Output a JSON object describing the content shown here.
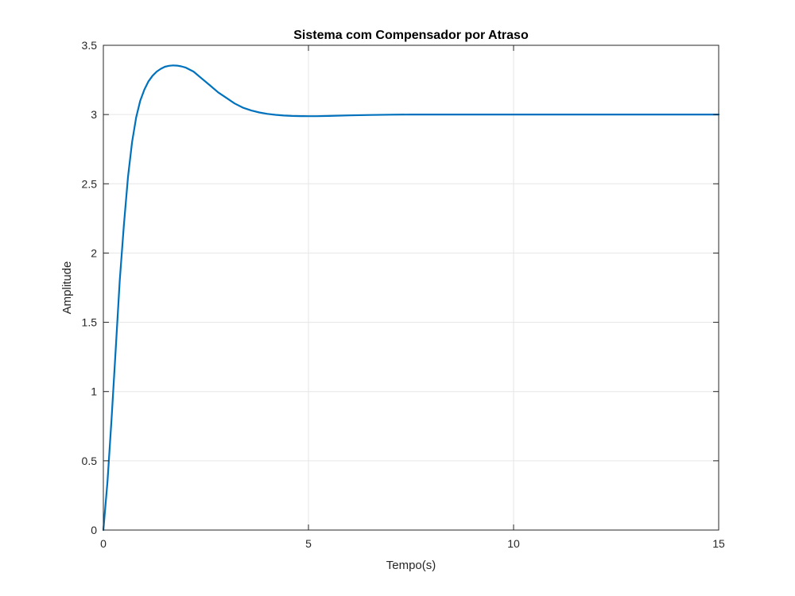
{
  "chart_data": {
    "type": "line",
    "title": "Sistema com Compensador por Atraso",
    "xlabel": "Tempo(s)",
    "ylabel": "Amplitude",
    "xlim": [
      0,
      15
    ],
    "ylim": [
      0,
      3.5
    ],
    "xticks": [
      0,
      5,
      10,
      15
    ],
    "xtick_labels": [
      "0",
      "5",
      "10",
      "15"
    ],
    "yticks": [
      0,
      0.5,
      1,
      1.5,
      2,
      2.5,
      3,
      3.5
    ],
    "ytick_labels": [
      "0",
      "0.5",
      "1",
      "1.5",
      "2",
      "2.5",
      "3",
      "3.5"
    ],
    "grid": true,
    "line_color": "#0072BD",
    "series": [
      {
        "x": [
          0,
          0.1,
          0.2,
          0.3,
          0.4,
          0.5,
          0.6,
          0.7,
          0.8,
          0.9,
          1.0,
          1.1,
          1.2,
          1.3,
          1.4,
          1.5,
          1.6,
          1.7,
          1.8,
          1.9,
          2.0,
          2.2,
          2.4,
          2.6,
          2.8,
          3.0,
          3.2,
          3.4,
          3.6,
          3.8,
          4.0,
          4.2,
          4.4,
          4.6,
          4.8,
          5.0,
          5.2,
          5.5,
          6.0,
          6.5,
          7.0,
          7.5,
          8.0,
          9.0,
          10.0,
          11.0,
          12.0,
          13.0,
          14.0,
          15.0
        ],
        "values": [
          0,
          0.35,
          0.8,
          1.3,
          1.8,
          2.2,
          2.55,
          2.8,
          2.98,
          3.1,
          3.18,
          3.24,
          3.28,
          3.31,
          3.33,
          3.345,
          3.352,
          3.355,
          3.353,
          3.348,
          3.34,
          3.31,
          3.26,
          3.21,
          3.16,
          3.12,
          3.08,
          3.05,
          3.03,
          3.015,
          3.005,
          2.998,
          2.993,
          2.99,
          2.989,
          2.988,
          2.988,
          2.99,
          2.994,
          2.997,
          2.999,
          3.0,
          3.0,
          3.0,
          3.0,
          3.0,
          3.0,
          3.0,
          3.0,
          3.0
        ]
      }
    ]
  }
}
